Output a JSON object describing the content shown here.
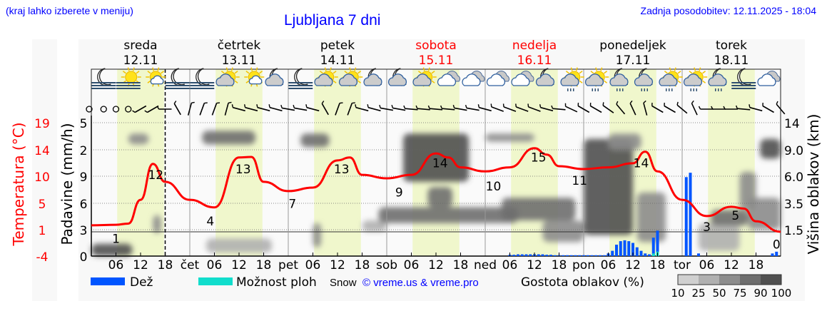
{
  "header": {
    "region_hint": "(kraj lahko izberete v meniju)",
    "title": "Ljubljana 7 dni",
    "updated": "Zadnja posodobitev: 12.11.2025 - 18:04"
  },
  "days": [
    {
      "name": "sreda",
      "date": "12.11",
      "weekend": false,
      "abbr": ""
    },
    {
      "name": "četrtek",
      "date": "13.11",
      "weekend": false,
      "abbr": "čet"
    },
    {
      "name": "petek",
      "date": "14.11",
      "weekend": false,
      "abbr": "pet"
    },
    {
      "name": "sobota",
      "date": "15.11",
      "weekend": true,
      "abbr": "sob"
    },
    {
      "name": "nedelja",
      "date": "16.11",
      "weekend": true,
      "abbr": "ned"
    },
    {
      "name": "ponedeljek",
      "date": "17.11",
      "weekend": false,
      "abbr": "pon"
    },
    {
      "name": "torek",
      "date": "18.11",
      "weekend": false,
      "abbr": "tor"
    }
  ],
  "colors": {
    "temp": "#ff0000",
    "rain": "#0055ff",
    "showers": "#11ddcc",
    "daylight": "#f0f7cc",
    "link": "#0000ff"
  },
  "chart_data": {
    "type": "line",
    "title": "Ljubljana 7 dni",
    "x_unit": "hours from 12.11 00:00",
    "x_range": [
      0,
      168
    ],
    "hour_ticks": [
      "06",
      "12",
      "18"
    ],
    "now_hour": 18,
    "daylight": [
      6.3,
      17.7
    ],
    "axes": {
      "temperature": {
        "label": "Temperatura (°C)",
        "ticks": [
          "19",
          "14",
          "10",
          "5",
          "1",
          "-4"
        ],
        "range": [
          -4,
          19
        ]
      },
      "precipitation": {
        "label": "Padavine (mm/h)",
        "ticks": [
          "5",
          "2",
          "9",
          "6",
          "3",
          "0"
        ]
      },
      "cloud_height": {
        "label": "Višina oblakov (km)",
        "ticks": [
          "14",
          "9.0",
          "6.0",
          "3.5",
          "1.5"
        ]
      }
    },
    "temperature": {
      "name": "Temperatura",
      "h": [
        0,
        6,
        9,
        12,
        15,
        18,
        24,
        30,
        36,
        39,
        42,
        48,
        54,
        60,
        63,
        66,
        72,
        78,
        84,
        87,
        90,
        96,
        102,
        108,
        111,
        114,
        120,
        126,
        132,
        135,
        138,
        144,
        150,
        156,
        159,
        162,
        168
      ],
      "t": [
        1.3,
        1.4,
        1.6,
        5.7,
        11.9,
        8.8,
        5.7,
        4.4,
        13.0,
        13.1,
        8.8,
        7.2,
        7.8,
        12.5,
        13.0,
        10.0,
        9.4,
        10.0,
        13.7,
        13.0,
        11.3,
        10.6,
        11.3,
        14.6,
        13.5,
        11.5,
        11.0,
        11.3,
        12.0,
        14.0,
        10.6,
        5.7,
        2.9,
        4.5,
        4.2,
        2.0,
        0.2
      ]
    },
    "temp_labels": [
      {
        "h": 6,
        "v": "1"
      },
      {
        "h": 15.7,
        "v": "12"
      },
      {
        "h": 29,
        "v": "4"
      },
      {
        "h": 37,
        "v": "13"
      },
      {
        "h": 49,
        "v": "7"
      },
      {
        "h": 61,
        "v": "13"
      },
      {
        "h": 75,
        "v": "9"
      },
      {
        "h": 85,
        "v": "14"
      },
      {
        "h": 98,
        "v": "10"
      },
      {
        "h": 109,
        "v": "15"
      },
      {
        "h": 119,
        "v": "11"
      },
      {
        "h": 134,
        "v": "14"
      },
      {
        "h": 150,
        "v": "3"
      },
      {
        "h": 157,
        "v": "5"
      },
      {
        "h": 167,
        "v": "0"
      }
    ],
    "rain": {
      "name": "Dež",
      "h": [
        102,
        103,
        104,
        105,
        106,
        107,
        108,
        109,
        110,
        111,
        112,
        113,
        114,
        115,
        116,
        117,
        118,
        119,
        120,
        121,
        122,
        123,
        124,
        125,
        126,
        127,
        128,
        129,
        130,
        131,
        132,
        133,
        134,
        135,
        136,
        137,
        138,
        145,
        146,
        148,
        166,
        167
      ],
      "mm": [
        0.15,
        0.15,
        0.2,
        0.2,
        0.2,
        0.2,
        0.2,
        0.2,
        0.2,
        0.15,
        0.15,
        0.1,
        0.1,
        0.1,
        0.1,
        0.1,
        0.1,
        0.1,
        0.1,
        0.1,
        0.1,
        0.1,
        0.1,
        0.1,
        0.3,
        0.6,
        1.3,
        1.7,
        1.8,
        1.7,
        1.5,
        1.0,
        0.6,
        0.3,
        0.2,
        2.1,
        2.9,
        9.0,
        9.5,
        0.3,
        0.3,
        0.5
      ]
    },
    "showers": {
      "name": "Možnost ploh",
      "h": [
        137,
        138
      ],
      "mm": [
        0.3,
        0.5
      ]
    },
    "snow_label": "Snow",
    "cloud_density_legend": {
      "title": "Gostota oblakov (%)",
      "levels": [
        "10",
        "25",
        "50",
        "75",
        "90",
        "100"
      ]
    },
    "clouds": [
      {
        "h0": 0,
        "h1": 10,
        "km0": 0,
        "km1": 0.7,
        "d": 90
      },
      {
        "h0": 9,
        "h1": 14,
        "km0": 10,
        "km1": 12,
        "d": 50
      },
      {
        "h0": 15,
        "h1": 17,
        "km0": 1.3,
        "km1": 2.6,
        "d": 50
      },
      {
        "h0": 27,
        "h1": 40,
        "km0": 10,
        "km1": 12.5,
        "d": 75
      },
      {
        "h0": 28,
        "h1": 44,
        "km0": 0.2,
        "km1": 1.0,
        "d": 25
      },
      {
        "h0": 51,
        "h1": 58,
        "km0": 9.5,
        "km1": 12,
        "d": 75
      },
      {
        "h0": 54,
        "h1": 56,
        "km0": 0.5,
        "km1": 2.0,
        "d": 50
      },
      {
        "h0": 66,
        "h1": 72,
        "km0": 1.4,
        "km1": 2.2,
        "d": 25
      },
      {
        "h0": 76,
        "h1": 92,
        "km0": 5.5,
        "km1": 12,
        "d": 90
      },
      {
        "h0": 70,
        "h1": 104,
        "km0": 2.0,
        "km1": 3.2,
        "d": 75
      },
      {
        "h0": 82,
        "h1": 88,
        "km0": 3.2,
        "km1": 5.0,
        "d": 75
      },
      {
        "h0": 96,
        "h1": 108,
        "km0": 10.5,
        "km1": 12,
        "d": 50
      },
      {
        "h0": 100,
        "h1": 118,
        "km0": 2.2,
        "km1": 4.0,
        "d": 75
      },
      {
        "h0": 110,
        "h1": 120,
        "km0": 0.8,
        "km1": 2.2,
        "d": 50
      },
      {
        "h0": 120,
        "h1": 132,
        "km0": 1.2,
        "km1": 11,
        "d": 90
      },
      {
        "h0": 126,
        "h1": 134,
        "km0": 9,
        "km1": 12,
        "d": 50
      },
      {
        "h0": 133,
        "h1": 140,
        "km0": 0.8,
        "km1": 4.5,
        "d": 50
      },
      {
        "h0": 148,
        "h1": 158,
        "km0": 0.3,
        "km1": 2.0,
        "d": 25
      },
      {
        "h0": 151,
        "h1": 160,
        "km0": 1.8,
        "km1": 3.0,
        "d": 75
      },
      {
        "h0": 158,
        "h1": 162,
        "km0": 3.0,
        "km1": 6.5,
        "d": 50
      },
      {
        "h0": 160,
        "h1": 168,
        "km0": 1.5,
        "km1": 4.0,
        "d": 50
      },
      {
        "h0": 163,
        "h1": 168,
        "km0": 8,
        "km1": 11,
        "d": 90
      }
    ],
    "weather_icons": [
      "moon-fog",
      "sun-fog",
      "sun-partly-cloudy",
      "moon-fog",
      "moon-fog",
      "sun-cloud",
      "sun-partly-cloudy",
      "moon-cloud",
      "moon-fog",
      "sun-cloud",
      "sun-cloud",
      "moon-cloud",
      "moon-cloud",
      "sun-cloud",
      "cloudy",
      "cloudy",
      "cloudy",
      "cloudy",
      "moon-cloud",
      "sun-cloud-rain",
      "sun-cloud-rain",
      "moon-cloud-rain",
      "moon-cloud-rain",
      "sun-cloud-rain",
      "sun-cloud-rain",
      "moon-cloud-rain",
      "moon-fog",
      "cloudy",
      "cloudy",
      "cloud-snow"
    ],
    "wind_dir": [
      null,
      null,
      null,
      null,
      240,
      240,
      270,
      330,
      15,
      20,
      20,
      15,
      285,
      285,
      285,
      285,
      280,
      280,
      285,
      330,
      20,
      20,
      285,
      285,
      280,
      280,
      275,
      275,
      275,
      275,
      280,
      280,
      285,
      290,
      290,
      290,
      290,
      285,
      275,
      295,
      300,
      300,
      305,
      320,
      335,
      345,
      300,
      300,
      310,
      335,
      270,
      270,
      270,
      275,
      285,
      300,
      320
    ]
  },
  "legend": {
    "rain": "Dež",
    "showers": "Možnost ploh",
    "snow": "Snow",
    "copyright": "© vreme.us & vreme.pro"
  }
}
